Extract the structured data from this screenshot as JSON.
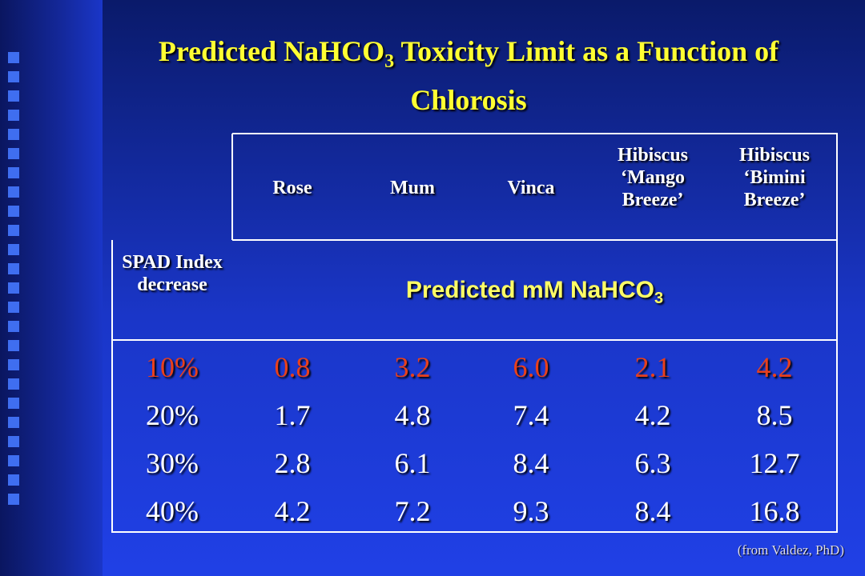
{
  "title": {
    "before": "Predicted NaHCO",
    "sub": "3",
    "after": " Toxicity Limit as a Function of Chlorosis"
  },
  "table": {
    "corner": "SPAD Index decrease",
    "columns": [
      "Rose",
      "Mum",
      "Vinca",
      "Hibiscus ‘Mango Breeze’",
      "Hibiscus ‘Bimini Breeze’"
    ],
    "unit": {
      "before": "Predicted ",
      "m": "mM",
      "middle": " NaHCO",
      "sub": "3"
    },
    "rows": [
      [
        "10%",
        "0.8",
        "3.2",
        "6.0",
        "2.1",
        "4.2"
      ],
      [
        "20%",
        "1.7",
        "4.8",
        "7.4",
        "4.2",
        "8.5"
      ],
      [
        "30%",
        "2.8",
        "6.1",
        "8.4",
        "6.3",
        "12.7"
      ],
      [
        "40%",
        "4.2",
        "7.2",
        "9.3",
        "8.4",
        "16.8"
      ]
    ]
  },
  "note": "(from Valdez, PhD)"
}
